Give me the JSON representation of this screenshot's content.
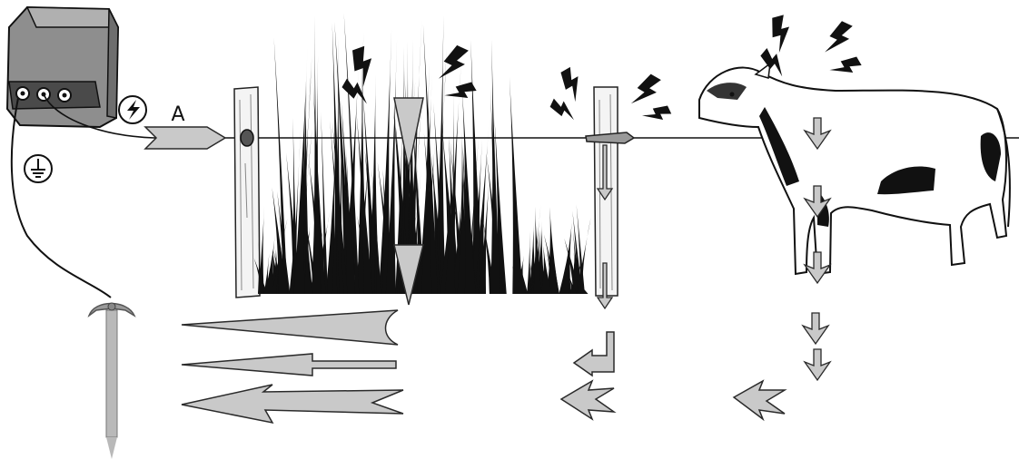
{
  "diagram": {
    "label_a": "A",
    "icons": {
      "energizer": "energizer-box-icon",
      "lightning": "lightning-bolt-icon",
      "ground": "ground-symbol-icon",
      "cow": "cow-icon",
      "ground_rod": "ground-rod-icon",
      "grass": "grass-icon",
      "fence_post": "fence-post-icon"
    },
    "colors": {
      "arrow_fill": "#c9c9c9",
      "arrow_stroke": "#2a2a2a",
      "ink": "#111111",
      "energizer_fill": "#8a8a8a"
    }
  }
}
